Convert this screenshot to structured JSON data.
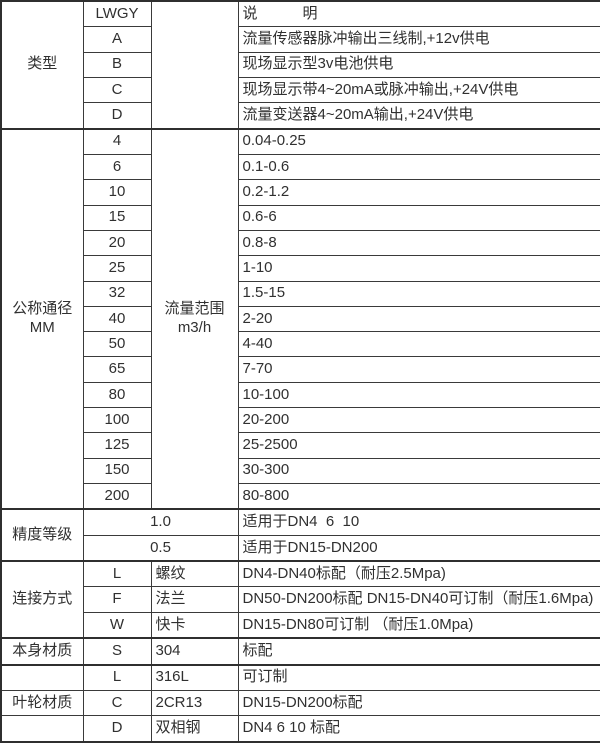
{
  "table": {
    "header": {
      "model_code": "LWGY",
      "desc_title": "说　　　明"
    },
    "sections": {
      "type": {
        "label": "类型",
        "rows": [
          {
            "code": "A",
            "desc": "流量传感器脉冲输出三线制,+12v供电"
          },
          {
            "code": "B",
            "desc": "现场显示型3v电池供电"
          },
          {
            "code": "C",
            "desc": "现场显示带4~20mA或脉冲输出,+24V供电"
          },
          {
            "code": "D",
            "desc": "流量变送器4~20mA输出,+24V供电"
          }
        ]
      },
      "diameter": {
        "label": "公称通径\nMM",
        "range_label": "流量范围\nm3/h",
        "rows": [
          {
            "dn": "4",
            "range": "0.04-0.25"
          },
          {
            "dn": "6",
            "range": "0.1-0.6"
          },
          {
            "dn": "10",
            "range": "0.2-1.2"
          },
          {
            "dn": "15",
            "range": "0.6-6"
          },
          {
            "dn": "20",
            "range": "0.8-8"
          },
          {
            "dn": "25",
            "range": "1-10"
          },
          {
            "dn": "32",
            "range": "1.5-15"
          },
          {
            "dn": "40",
            "range": "2-20"
          },
          {
            "dn": "50",
            "range": "4-40"
          },
          {
            "dn": "65",
            "range": "7-70"
          },
          {
            "dn": "80",
            "range": "10-100"
          },
          {
            "dn": "100",
            "range": "20-200"
          },
          {
            "dn": "125",
            "range": "25-2500"
          },
          {
            "dn": "150",
            "range": "30-300"
          },
          {
            "dn": "200",
            "range": "80-800"
          }
        ]
      },
      "accuracy": {
        "label": "精度等级",
        "rows": [
          {
            "value": "1.0",
            "desc": "适用于DN4  6  10"
          },
          {
            "value": "0.5",
            "desc": "适用于DN15-DN200"
          }
        ]
      },
      "connection": {
        "label": "连接方式",
        "rows": [
          {
            "code": "L",
            "name": "螺纹",
            "desc": "DN4-DN40标配（耐压2.5Mpa)"
          },
          {
            "code": "F",
            "name": "法兰",
            "desc": "DN50-DN200标配 DN15-DN40可订制（耐压1.6Mpa)"
          },
          {
            "code": "W",
            "name": "快卡",
            "desc": "DN15-DN80可订制 （耐压1.0Mpa)"
          }
        ]
      },
      "body_material": {
        "label": "本身材质",
        "rows": [
          {
            "code": "S",
            "name": "304",
            "desc": "标配"
          }
        ]
      },
      "impeller_material": {
        "label": "叶轮材质",
        "rows": [
          {
            "code": "L",
            "name": "316L",
            "desc": "可订制"
          },
          {
            "code": "C",
            "name": "2CR13",
            "desc": "DN15-DN200标配"
          },
          {
            "code": "D",
            "name": "双相钢",
            "desc": "DN4 6 10 标配"
          }
        ]
      }
    },
    "colors": {
      "border": "#3a3a3a",
      "text": "#303030",
      "background": "#ffffff"
    }
  }
}
